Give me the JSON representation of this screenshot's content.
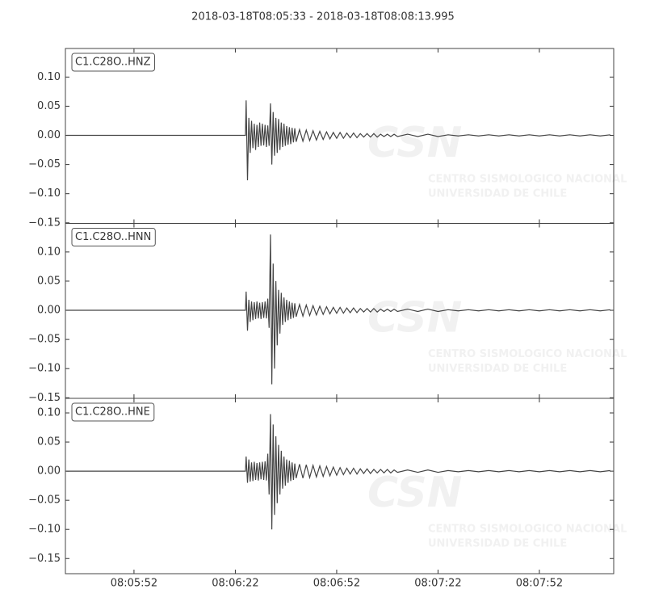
{
  "chart_data": {
    "type": "line",
    "title": "2018-03-18T08:05:33  -  2018-03-18T08:08:13.995",
    "watermark": {
      "logo": "CSN",
      "line1": "CENTRO SISMOLOGICO NACIONAL",
      "line2": "UNIVERSIDAD DE CHILE"
    },
    "xlim": [
      29131.7,
      29294
    ],
    "xticks": [
      {
        "value": 29152,
        "label": "08:05:52"
      },
      {
        "value": 29182,
        "label": "08:06:22"
      },
      {
        "value": 29212,
        "label": "08:06:52"
      },
      {
        "value": 29242,
        "label": "08:07:22"
      },
      {
        "value": 29272,
        "label": "08:07:52"
      }
    ],
    "x": [
      29132,
      29185,
      29185.2,
      29185.6,
      29186.0,
      29186.4,
      29186.8,
      29187.2,
      29187.6,
      29188.0,
      29188.4,
      29188.8,
      29189.2,
      29189.6,
      29190.0,
      29190.4,
      29190.8,
      29191.2,
      29191.6,
      29192.0,
      29192.4,
      29192.8,
      29193.2,
      29193.6,
      29194.0,
      29194.4,
      29194.8,
      29195.2,
      29195.6,
      29196.0,
      29196.4,
      29196.8,
      29197.2,
      29197.6,
      29198.0,
      29198.4,
      29198.8,
      29199.2,
      29199.6,
      29200.0,
      29201,
      29202,
      29203,
      29204,
      29205,
      29206,
      29207,
      29208,
      29209,
      29210,
      29211,
      29212,
      29213,
      29214,
      29215,
      29216,
      29217,
      29218,
      29219,
      29220,
      29221,
      29222,
      29223,
      29224,
      29225,
      29226,
      29227,
      29228,
      29229,
      29230,
      29233,
      29236,
      29239,
      29242,
      29245,
      29248,
      29251,
      29254,
      29257,
      29260,
      29263,
      29266,
      29269,
      29272,
      29275,
      29278,
      29281,
      29284,
      29287,
      29290,
      29293
    ],
    "series": [
      {
        "name": "C1.C28O..HNZ",
        "color": "#444444",
        "ylim": [
          -0.151,
          0.149
        ],
        "yticks": [
          {
            "value": -0.15,
            "label": "−0.15"
          },
          {
            "value": -0.1,
            "label": "−0.10"
          },
          {
            "value": -0.05,
            "label": "−0.05"
          },
          {
            "value": 0,
            "label": "0.00"
          },
          {
            "value": 0.05,
            "label": "0.05"
          },
          {
            "value": 0.1,
            "label": "0.10"
          }
        ],
        "values": [
          0,
          0,
          0.06,
          -0.077,
          0.03,
          -0.03,
          0.025,
          -0.022,
          0.02,
          -0.025,
          0.018,
          -0.02,
          0.022,
          -0.018,
          0.02,
          -0.017,
          0.018,
          -0.02,
          0.017,
          -0.018,
          0.055,
          -0.05,
          0.04,
          -0.035,
          0.03,
          -0.03,
          0.028,
          -0.025,
          0.022,
          -0.02,
          0.02,
          -0.018,
          0.016,
          -0.016,
          0.014,
          -0.015,
          0.013,
          -0.012,
          0.012,
          -0.011,
          0.01,
          -0.01,
          0.009,
          -0.009,
          0.008,
          -0.008,
          0.007,
          -0.007,
          0.006,
          -0.006,
          0.005,
          -0.005,
          0.005,
          -0.005,
          0.004,
          -0.004,
          0.004,
          -0.004,
          0.003,
          -0.003,
          0.003,
          -0.003,
          0.003,
          -0.003,
          0.002,
          -0.002,
          0.002,
          -0.002,
          0.002,
          -0.002,
          0.002,
          -0.002,
          0.002,
          -0.002,
          0.001,
          -0.001,
          0.001,
          -0.001,
          0.001,
          -0.001,
          0.001,
          -0.001,
          0.001,
          -0.001,
          0.001,
          -0.001,
          0.001,
          -0.001,
          0.001,
          -0.001,
          0.001
        ]
      },
      {
        "name": "C1.C28O..HNN",
        "color": "#444444",
        "ylim": [
          -0.151,
          0.149
        ],
        "yticks": [
          {
            "value": -0.15,
            "label": "−0.15"
          },
          {
            "value": -0.1,
            "label": "−0.10"
          },
          {
            "value": -0.05,
            "label": "−0.05"
          },
          {
            "value": 0,
            "label": "0.00"
          },
          {
            "value": 0.05,
            "label": "0.05"
          },
          {
            "value": 0.1,
            "label": "0.10"
          }
        ],
        "values": [
          0,
          0,
          0.032,
          -0.035,
          0.018,
          -0.02,
          0.015,
          -0.017,
          0.014,
          -0.015,
          0.015,
          -0.014,
          0.013,
          -0.015,
          0.014,
          -0.013,
          0.015,
          -0.014,
          0.02,
          -0.03,
          0.13,
          -0.127,
          0.08,
          -0.1,
          0.05,
          -0.06,
          0.035,
          -0.04,
          0.03,
          -0.025,
          0.022,
          -0.02,
          0.018,
          -0.017,
          0.015,
          -0.015,
          0.013,
          -0.013,
          0.012,
          -0.011,
          0.01,
          -0.01,
          0.009,
          -0.009,
          0.008,
          -0.008,
          0.007,
          -0.007,
          0.006,
          -0.006,
          0.005,
          -0.005,
          0.005,
          -0.005,
          0.004,
          -0.004,
          0.004,
          -0.004,
          0.003,
          -0.003,
          0.003,
          -0.003,
          0.003,
          -0.003,
          0.002,
          -0.002,
          0.002,
          -0.002,
          0.002,
          -0.002,
          0.002,
          -0.002,
          0.002,
          -0.002,
          0.001,
          -0.001,
          0.001,
          -0.001,
          0.001,
          -0.001,
          0.001,
          -0.001,
          0.001,
          -0.001,
          0.001,
          -0.001,
          0.001,
          -0.001,
          0.001,
          -0.001,
          0.001
        ]
      },
      {
        "name": "C1.C28O..HNE",
        "color": "#444444",
        "ylim": [
          -0.176,
          0.125
        ],
        "yticks": [
          {
            "value": -0.15,
            "label": "−0.15"
          },
          {
            "value": -0.1,
            "label": "−0.10"
          },
          {
            "value": -0.05,
            "label": "−0.05"
          },
          {
            "value": 0,
            "label": "0.00"
          },
          {
            "value": 0.05,
            "label": "0.05"
          },
          {
            "value": 0.1,
            "label": "0.10"
          }
        ],
        "values": [
          0,
          0,
          0.025,
          -0.02,
          0.02,
          -0.018,
          0.015,
          -0.017,
          0.016,
          -0.015,
          0.014,
          -0.016,
          0.015,
          -0.014,
          0.016,
          -0.015,
          0.017,
          -0.016,
          0.03,
          -0.04,
          0.098,
          -0.1,
          0.08,
          -0.075,
          0.06,
          -0.055,
          0.045,
          -0.04,
          0.035,
          -0.03,
          0.025,
          -0.025,
          0.02,
          -0.02,
          0.018,
          -0.017,
          0.015,
          -0.015,
          0.013,
          -0.012,
          0.012,
          -0.012,
          0.011,
          -0.011,
          0.01,
          -0.01,
          0.009,
          -0.009,
          0.008,
          -0.008,
          0.007,
          -0.007,
          0.006,
          -0.006,
          0.005,
          -0.005,
          0.005,
          -0.005,
          0.004,
          -0.004,
          0.004,
          -0.004,
          0.003,
          -0.003,
          0.003,
          -0.003,
          0.003,
          -0.003,
          0.002,
          -0.002,
          0.002,
          -0.002,
          0.002,
          -0.002,
          0.001,
          -0.001,
          0.001,
          -0.001,
          0.001,
          -0.001,
          0.001,
          -0.001,
          0.001,
          -0.001,
          0.001,
          -0.001,
          0.001,
          -0.001,
          0.001,
          -0.001,
          0.001
        ]
      }
    ]
  }
}
